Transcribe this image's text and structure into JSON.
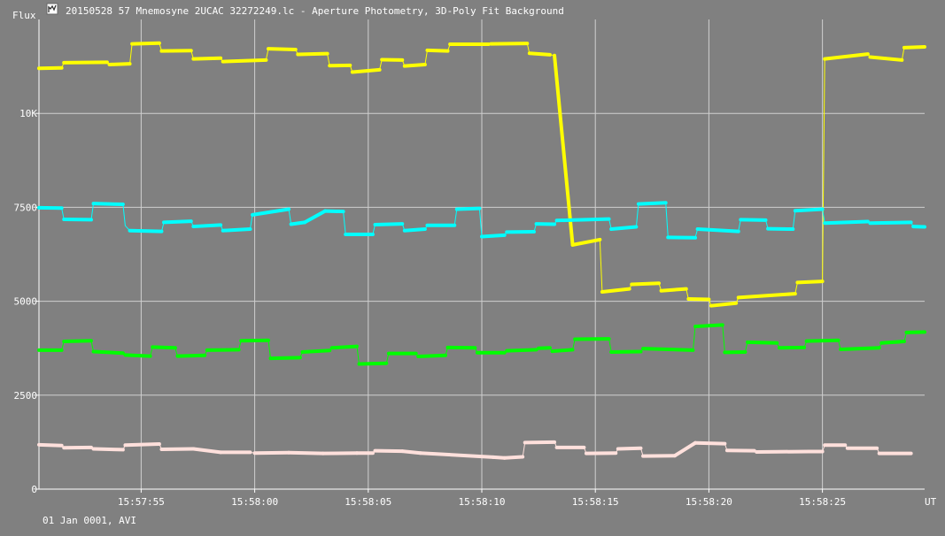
{
  "window": {
    "title": "20150528 57 Mnemosyne 2UCAC 32272249.lc - Aperture Photometry, 3D-Poly Fit Background",
    "icon": "light-curve-app-icon"
  },
  "footer": {
    "date_text": "01 Jan 0001, AVI"
  },
  "colors": {
    "background": "#808080",
    "grid": "#cfcfcf",
    "axis": "#ffffff",
    "text": "#ffffff"
  },
  "chart_data": {
    "type": "line",
    "title": "20150528 57 Mnemosyne 2UCAC 32272249.lc - Aperture Photometry, 3D-Poly Fit Background",
    "ylabel": "Flux",
    "xlabel": "UT",
    "x_unit": "seconds after 15:57:50",
    "xlim": [
      0.5,
      39.5
    ],
    "ylim": [
      0,
      12500
    ],
    "x_ticks": [
      {
        "x": 5,
        "label": "15:57:55"
      },
      {
        "x": 10,
        "label": "15:58:00"
      },
      {
        "x": 15,
        "label": "15:58:05"
      },
      {
        "x": 20,
        "label": "15:58:10"
      },
      {
        "x": 25,
        "label": "15:58:15"
      },
      {
        "x": 30,
        "label": "15:58:20"
      },
      {
        "x": 35,
        "label": "15:58:25"
      }
    ],
    "y_ticks": [
      {
        "y": 0,
        "label": "0"
      },
      {
        "y": 2500,
        "label": "2500"
      },
      {
        "y": 5000,
        "label": "5000"
      },
      {
        "y": 7500,
        "label": "7500"
      },
      {
        "y": 10000,
        "label": "10K"
      }
    ],
    "grid": true,
    "series": [
      {
        "color": "#ffff00",
        "points": [
          [
            0.5,
            11200
          ],
          [
            1.5,
            11210
          ],
          [
            1.6,
            11350
          ],
          [
            3.5,
            11360
          ],
          [
            3.6,
            11300
          ],
          [
            4.5,
            11320
          ],
          [
            4.6,
            11850
          ],
          [
            5.8,
            11870
          ],
          [
            5.9,
            11660
          ],
          [
            7.2,
            11670
          ],
          [
            7.3,
            11450
          ],
          [
            8.5,
            11470
          ],
          [
            8.6,
            11380
          ],
          [
            10.5,
            11420
          ],
          [
            10.6,
            11720
          ],
          [
            11.8,
            11700
          ],
          [
            11.9,
            11570
          ],
          [
            13.2,
            11590
          ],
          [
            13.3,
            11270
          ],
          [
            14.2,
            11280
          ],
          [
            14.3,
            11100
          ],
          [
            15.5,
            11160
          ],
          [
            15.6,
            11430
          ],
          [
            16.5,
            11420
          ],
          [
            16.6,
            11260
          ],
          [
            17.5,
            11300
          ],
          [
            17.6,
            11680
          ],
          [
            18.5,
            11660
          ],
          [
            18.6,
            11840
          ],
          [
            20.3,
            11840
          ],
          [
            20.4,
            11850
          ],
          [
            22.0,
            11860
          ],
          [
            22.1,
            11600
          ],
          [
            23.0,
            11560
          ],
          [
            23.1,
            11550
          ],
          [
            23.2,
            11540
          ],
          [
            24.0,
            6500
          ],
          [
            25.2,
            6640
          ],
          [
            25.3,
            5250
          ],
          [
            26.5,
            5330
          ],
          [
            26.6,
            5450
          ],
          [
            27.8,
            5480
          ],
          [
            27.9,
            5280
          ],
          [
            29.0,
            5330
          ],
          [
            29.1,
            5060
          ],
          [
            30.0,
            5050
          ],
          [
            30.1,
            4880
          ],
          [
            31.2,
            4950
          ],
          [
            31.3,
            5100
          ],
          [
            33.8,
            5200
          ],
          [
            33.9,
            5500
          ],
          [
            35.0,
            5530
          ],
          [
            35.1,
            11450
          ],
          [
            37.0,
            11580
          ],
          [
            37.1,
            11500
          ],
          [
            38.5,
            11420
          ],
          [
            38.6,
            11750
          ],
          [
            39.5,
            11770
          ]
        ]
      },
      {
        "color": "#00ffff",
        "points": [
          [
            0.5,
            7490
          ],
          [
            1.5,
            7480
          ],
          [
            1.6,
            7180
          ],
          [
            2.8,
            7170
          ],
          [
            2.9,
            7600
          ],
          [
            4.2,
            7580
          ],
          [
            4.3,
            7010
          ],
          [
            4.5,
            6880
          ],
          [
            5.9,
            6860
          ],
          [
            6.0,
            7100
          ],
          [
            7.2,
            7130
          ],
          [
            7.3,
            6990
          ],
          [
            8.5,
            7030
          ],
          [
            8.6,
            6880
          ],
          [
            9.8,
            6920
          ],
          [
            9.9,
            7300
          ],
          [
            11.5,
            7450
          ],
          [
            11.6,
            7050
          ],
          [
            12.2,
            7100
          ],
          [
            13.1,
            7400
          ],
          [
            13.9,
            7390
          ],
          [
            14.0,
            6780
          ],
          [
            15.2,
            6780
          ],
          [
            15.3,
            7040
          ],
          [
            16.5,
            7060
          ],
          [
            16.6,
            6880
          ],
          [
            17.5,
            6920
          ],
          [
            17.6,
            7020
          ],
          [
            18.8,
            7020
          ],
          [
            18.9,
            7450
          ],
          [
            19.9,
            7470
          ],
          [
            20.0,
            6720
          ],
          [
            21.0,
            6760
          ],
          [
            21.1,
            6840
          ],
          [
            22.3,
            6850
          ],
          [
            22.4,
            7060
          ],
          [
            23.2,
            7050
          ],
          [
            23.3,
            7150
          ],
          [
            25.6,
            7190
          ],
          [
            25.7,
            6920
          ],
          [
            26.8,
            6980
          ],
          [
            26.9,
            7590
          ],
          [
            28.1,
            7620
          ],
          [
            28.2,
            6700
          ],
          [
            29.4,
            6690
          ],
          [
            29.5,
            6920
          ],
          [
            31.3,
            6860
          ],
          [
            31.4,
            7170
          ],
          [
            32.5,
            7160
          ],
          [
            32.6,
            6930
          ],
          [
            33.7,
            6920
          ],
          [
            33.8,
            7410
          ],
          [
            35.0,
            7450
          ],
          [
            35.1,
            7080
          ],
          [
            37.0,
            7120
          ],
          [
            37.1,
            7080
          ],
          [
            38.9,
            7100
          ],
          [
            39.0,
            6990
          ],
          [
            39.5,
            6980
          ]
        ]
      },
      {
        "color": "#00ff00",
        "points": [
          [
            0.5,
            3700
          ],
          [
            1.5,
            3700
          ],
          [
            1.6,
            3930
          ],
          [
            2.8,
            3950
          ],
          [
            2.9,
            3660
          ],
          [
            4.2,
            3620
          ],
          [
            4.3,
            3570
          ],
          [
            5.4,
            3540
          ],
          [
            5.5,
            3780
          ],
          [
            6.5,
            3760
          ],
          [
            6.6,
            3540
          ],
          [
            7.8,
            3560
          ],
          [
            7.9,
            3700
          ],
          [
            9.3,
            3710
          ],
          [
            9.4,
            3950
          ],
          [
            10.6,
            3960
          ],
          [
            10.7,
            3480
          ],
          [
            12.0,
            3500
          ],
          [
            12.1,
            3650
          ],
          [
            13.3,
            3690
          ],
          [
            13.4,
            3760
          ],
          [
            14.5,
            3800
          ],
          [
            14.6,
            3330
          ],
          [
            15.8,
            3350
          ],
          [
            15.9,
            3610
          ],
          [
            17.1,
            3610
          ],
          [
            17.2,
            3530
          ],
          [
            18.4,
            3560
          ],
          [
            18.5,
            3770
          ],
          [
            19.7,
            3760
          ],
          [
            19.8,
            3630
          ],
          [
            21.0,
            3630
          ],
          [
            21.1,
            3680
          ],
          [
            22.4,
            3710
          ],
          [
            22.5,
            3750
          ],
          [
            23.0,
            3760
          ],
          [
            23.1,
            3670
          ],
          [
            24.0,
            3710
          ],
          [
            24.1,
            3990
          ],
          [
            25.6,
            4000
          ],
          [
            25.7,
            3650
          ],
          [
            27.0,
            3660
          ],
          [
            27.1,
            3740
          ],
          [
            29.3,
            3700
          ],
          [
            29.4,
            4330
          ],
          [
            30.6,
            4370
          ],
          [
            30.7,
            3640
          ],
          [
            31.6,
            3650
          ],
          [
            31.7,
            3910
          ],
          [
            33.0,
            3890
          ],
          [
            33.1,
            3760
          ],
          [
            34.2,
            3770
          ],
          [
            34.3,
            3940
          ],
          [
            35.7,
            3960
          ],
          [
            35.8,
            3720
          ],
          [
            37.5,
            3760
          ],
          [
            37.6,
            3890
          ],
          [
            38.6,
            3930
          ],
          [
            38.7,
            4170
          ],
          [
            39.5,
            4180
          ]
        ]
      },
      {
        "color": "#ffe0dc",
        "points": [
          [
            0.5,
            1180
          ],
          [
            1.5,
            1160
          ],
          [
            1.6,
            1100
          ],
          [
            2.8,
            1110
          ],
          [
            2.9,
            1070
          ],
          [
            4.2,
            1050
          ],
          [
            4.3,
            1170
          ],
          [
            5.8,
            1200
          ],
          [
            5.9,
            1060
          ],
          [
            7.3,
            1070
          ],
          [
            8.5,
            980
          ],
          [
            9.8,
            980
          ],
          [
            10.0,
            960
          ],
          [
            11.5,
            970
          ],
          [
            13.0,
            950
          ],
          [
            14.5,
            960
          ],
          [
            15.2,
            960
          ],
          [
            15.3,
            1020
          ],
          [
            16.5,
            1010
          ],
          [
            17.3,
            960
          ],
          [
            20.5,
            850
          ],
          [
            21.0,
            830
          ],
          [
            21.8,
            860
          ],
          [
            21.9,
            1240
          ],
          [
            23.2,
            1250
          ],
          [
            23.3,
            1110
          ],
          [
            24.5,
            1110
          ],
          [
            24.6,
            950
          ],
          [
            25.9,
            960
          ],
          [
            26.0,
            1070
          ],
          [
            27.0,
            1090
          ],
          [
            27.1,
            880
          ],
          [
            28.5,
            890
          ],
          [
            29.4,
            1230
          ],
          [
            30.7,
            1210
          ],
          [
            30.8,
            1030
          ],
          [
            32.0,
            1020
          ],
          [
            32.1,
            990
          ],
          [
            34.4,
            1000
          ],
          [
            35.0,
            1000
          ],
          [
            35.1,
            1170
          ],
          [
            36.0,
            1170
          ],
          [
            36.1,
            1090
          ],
          [
            37.4,
            1090
          ],
          [
            37.5,
            950
          ],
          [
            38.9,
            950
          ]
        ]
      }
    ]
  }
}
